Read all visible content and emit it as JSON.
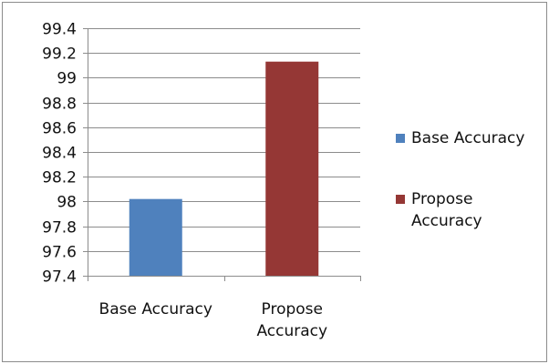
{
  "chart_data": {
    "type": "bar",
    "title": "",
    "xlabel": "",
    "ylabel": "",
    "categories": [
      "Base Accuracy",
      "Propose Accuracy"
    ],
    "category_label_lines": [
      [
        "Base Accuracy"
      ],
      [
        "Propose",
        "Accuracy"
      ]
    ],
    "series": [
      {
        "name": "Base Accuracy",
        "values": [
          98.02,
          null
        ],
        "color": "#4f81bd"
      },
      {
        "name": "Propose Accuracy",
        "values": [
          null,
          99.13
        ],
        "color": "#953735"
      }
    ],
    "ylim": [
      97.4,
      99.4
    ],
    "yticks": [
      "97.4",
      "97.6",
      "97.8",
      "98",
      "98.2",
      "98.4",
      "98.6",
      "98.8",
      "99",
      "99.2",
      "99.4"
    ],
    "grid": true,
    "legend_position": "right",
    "legend": [
      {
        "label_lines": [
          "Base Accuracy"
        ],
        "color": "#4f81bd"
      },
      {
        "label_lines": [
          "Propose",
          "Accuracy"
        ],
        "color": "#953735"
      }
    ]
  }
}
